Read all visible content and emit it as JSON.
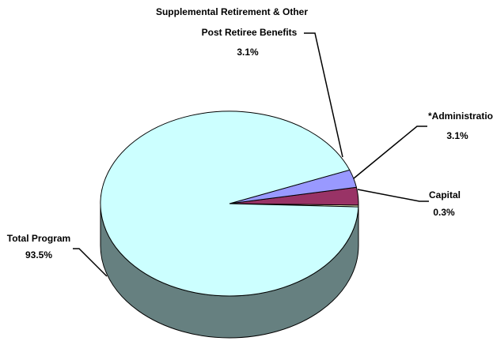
{
  "chart_data": {
    "type": "pie",
    "style": "3d",
    "title": "",
    "slices": [
      {
        "label": "Supplemental Retirement & Other Post Retiree Benefits",
        "value": 3.1,
        "value_label": "3.1%",
        "color": "#9999ff"
      },
      {
        "label": "*Administration",
        "value": 3.1,
        "value_label": "3.1%",
        "color": "#993366"
      },
      {
        "label": "Capital",
        "value": 0.3,
        "value_label": "0.3%",
        "color": "#ffffcc"
      },
      {
        "label": "Total Program",
        "value": 93.5,
        "value_label": "93.5%",
        "color": "#ccffff"
      }
    ],
    "side_color": "#668080",
    "legend": "none"
  },
  "labels": {
    "supplemental_line1": "Supplemental Retirement & Other",
    "supplemental_line2": "Post Retiree Benefits",
    "supplemental_value": "3.1%",
    "administration": "*Administration",
    "administration_value": "3.1%",
    "capital": "Capital",
    "capital_value": "0.3%",
    "total_program": "Total Program",
    "total_program_value": "93.5%"
  }
}
